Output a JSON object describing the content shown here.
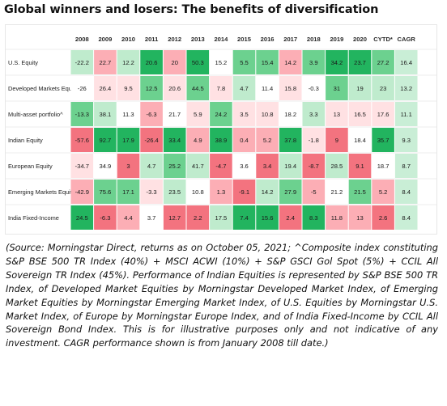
{
  "title": "Global winners and losers: The benefits of diversification",
  "chart_data": {
    "type": "heatmap",
    "columns": [
      "2008",
      "2009",
      "2010",
      "2011",
      "2012",
      "2013",
      "2014",
      "2015",
      "2016",
      "2017",
      "2018",
      "2019",
      "2020",
      "CYTD*",
      "CAGR"
    ],
    "rows": [
      {
        "label": "U.S. Equity",
        "values": [
          -22.2,
          22.7,
          12.2,
          20.6,
          20.0,
          50.3,
          15.2,
          5.5,
          15.4,
          14.2,
          3.9,
          34.2,
          23.7,
          27.2,
          16.4
        ]
      },
      {
        "label": "Developed Markets Equity",
        "values": [
          -26.0,
          26.4,
          9.5,
          12.5,
          20.6,
          44.5,
          7.8,
          4.7,
          11.4,
          15.8,
          -0.3,
          31.0,
          19.0,
          23.0,
          13.2
        ]
      },
      {
        "label": "Multi-asset portfolio^",
        "values": [
          -13.3,
          38.1,
          11.3,
          -6.3,
          21.7,
          5.9,
          24.2,
          3.5,
          10.8,
          18.2,
          3.3,
          13.0,
          16.5,
          17.6,
          11.1
        ]
      },
      {
        "label": "Indian Equity",
        "values": [
          -57.6,
          92.7,
          17.9,
          -26.4,
          33.4,
          4.9,
          38.9,
          0.4,
          5.2,
          37.8,
          -1.8,
          9.0,
          18.4,
          35.7,
          9.3
        ]
      },
      {
        "label": "European Equity",
        "values": [
          -34.7,
          34.9,
          3.0,
          4.7,
          25.2,
          41.7,
          -4.7,
          3.6,
          3.4,
          19.4,
          -8.7,
          28.5,
          9.1,
          18.7,
          8.7
        ]
      },
      {
        "label": "Emerging Markets Equity",
        "values": [
          -42.9,
          75.6,
          17.1,
          -3.3,
          23.5,
          10.8,
          1.3,
          -9.1,
          14.2,
          27.9,
          -5.0,
          21.2,
          21.5,
          5.2,
          8.4
        ]
      },
      {
        "label": "India Fixed-Income",
        "values": [
          24.5,
          -6.3,
          4.4,
          3.7,
          12.7,
          2.2,
          17.5,
          7.4,
          15.6,
          2.4,
          8.3,
          11.8,
          13.0,
          2.6,
          8.4
        ]
      }
    ],
    "colors": {
      "rank1": "#22b45f",
      "rank2": "#6cd18f",
      "rank3": "#bfebcd",
      "rank4": "#ffffff",
      "rank5": "#ffe1e3",
      "rank6": "#fcaeb5",
      "rank7": "#f3737f",
      "cagr_column": "#c9eed6"
    }
  },
  "note": "(Source: Morningstar Direct, returns as on October 05, 2021; ^Composite index constituting S&P BSE 500 TR Index (40%) + MSCI ACWI (10%) + S&P GSCI Gol Spot (5%) + CCIL All Sovereign TR Index (45%). Performance of Indian Equities is represented by S&P BSE 500 TR Index, of Developed Market Equities by Morningstar Developed Market Index, of Emerging Market Equities by Morningstar Emerging Market Index, of U.S. Equities by Morningstar U.S. Market Index, of Europe by Morningstar Europe Index, and of India Fixed-Income by CCIL All Sovereign Bond Index.  This is for illustrative purposes only and not indicative of any investment. CAGR performance shown is from January 2008 till date.)"
}
